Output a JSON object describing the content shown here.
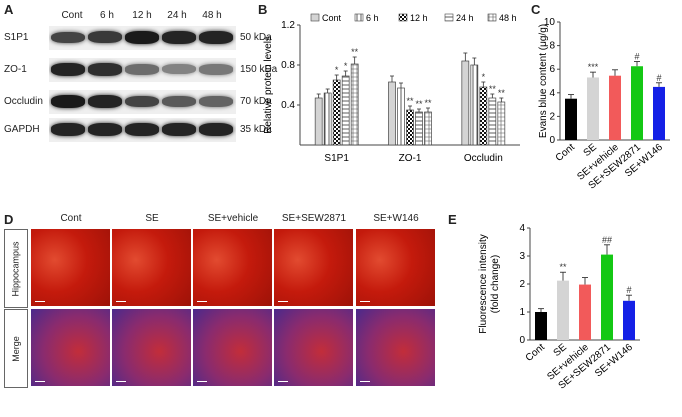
{
  "panels": {
    "a": "A",
    "b": "B",
    "c": "C",
    "d": "D",
    "e": "E"
  },
  "blot": {
    "lanes": [
      "Cont",
      "6 h",
      "12 h",
      "24 h",
      "48 h"
    ],
    "rows": [
      {
        "name": "S1P1",
        "kda": "50 kDa",
        "intensity": [
          0.75,
          0.8,
          0.95,
          0.9,
          0.9
        ]
      },
      {
        "name": "ZO-1",
        "kda": "150 kDa",
        "intensity": [
          0.9,
          0.85,
          0.55,
          0.45,
          0.5
        ]
      },
      {
        "name": "Occludin",
        "kda": "70 kDa",
        "intensity": [
          0.95,
          0.9,
          0.75,
          0.65,
          0.6
        ]
      },
      {
        "name": "GAPDH",
        "kda": "35 kDa",
        "intensity": [
          0.9,
          0.9,
          0.9,
          0.9,
          0.9
        ]
      }
    ]
  },
  "micro": {
    "cols": [
      "Cont",
      "SE",
      "SE+vehicle",
      "SE+SEW2871",
      "SE+W146"
    ],
    "rows": [
      "Hippocampus",
      "Merge"
    ]
  },
  "chart_data": [
    {
      "type": "bar",
      "ylabel": "Relative protein levels",
      "ylim": [
        0,
        1.2
      ],
      "yticks": [
        "0.4",
        "0.8",
        "1.2"
      ],
      "categories": [
        "S1P1",
        "ZO-1",
        "Occludin"
      ],
      "legend_placement": "top",
      "series": [
        {
          "name": "Cont",
          "values": [
            0.47,
            0.63,
            0.84
          ],
          "errors": [
            0.04,
            0.06,
            0.08
          ],
          "marks": [
            "",
            "",
            ""
          ],
          "fill": "#d4d4d4",
          "pattern": "solid"
        },
        {
          "name": "6 h",
          "values": [
            0.52,
            0.57,
            0.8
          ],
          "errors": [
            0.04,
            0.05,
            0.07
          ],
          "marks": [
            "",
            "",
            ""
          ],
          "fill": "#ffffff",
          "pattern": "vlines"
        },
        {
          "name": "12 h",
          "values": [
            0.65,
            0.35,
            0.58
          ],
          "errors": [
            0.05,
            0.04,
            0.05
          ],
          "marks": [
            "*",
            "**",
            "*"
          ],
          "fill": "#ffffff",
          "pattern": "checker"
        },
        {
          "name": "24 h",
          "values": [
            0.69,
            0.33,
            0.47
          ],
          "errors": [
            0.05,
            0.03,
            0.04
          ],
          "marks": [
            "*",
            "**",
            "**"
          ],
          "fill": "#ffffff",
          "pattern": "hlines"
        },
        {
          "name": "48 h",
          "values": [
            0.81,
            0.33,
            0.43
          ],
          "errors": [
            0.07,
            0.04,
            0.04
          ],
          "marks": [
            "**",
            "**",
            "**"
          ],
          "fill": "#ffffff",
          "pattern": "grid"
        }
      ]
    },
    {
      "type": "bar",
      "ylabel": "Evans blue content (μg/g)",
      "ylim": [
        0,
        10
      ],
      "yticks": [
        "0",
        "2",
        "4",
        "6",
        "8",
        "10"
      ],
      "categories": [
        "Cont",
        "SE",
        "SE+vehicle",
        "SE+SEW2871",
        "SE+W146"
      ],
      "values": [
        3.5,
        5.3,
        5.45,
        6.25,
        4.5
      ],
      "errors": [
        0.35,
        0.45,
        0.5,
        0.4,
        0.35
      ],
      "marks": [
        "",
        "***",
        "",
        "#",
        "#"
      ],
      "colors": [
        "#000000",
        "#d4d4d4",
        "#f25a5a",
        "#14c814",
        "#1420e6"
      ]
    },
    {
      "type": "bar",
      "ylabel": "Fluorescence intensity (fold change)",
      "ylim": [
        0,
        4
      ],
      "yticks": [
        "0",
        "1",
        "2",
        "3",
        "4"
      ],
      "categories": [
        "Cont",
        "SE",
        "SE+vehicle",
        "SE+SEW2871",
        "SE+W146"
      ],
      "values": [
        1.0,
        2.12,
        1.98,
        3.05,
        1.4
      ],
      "errors": [
        0.12,
        0.3,
        0.25,
        0.35,
        0.2
      ],
      "marks": [
        "",
        "**",
        "",
        "##",
        "#"
      ],
      "colors": [
        "#000000",
        "#d4d4d4",
        "#f25a5a",
        "#14c814",
        "#1420e6"
      ]
    }
  ]
}
